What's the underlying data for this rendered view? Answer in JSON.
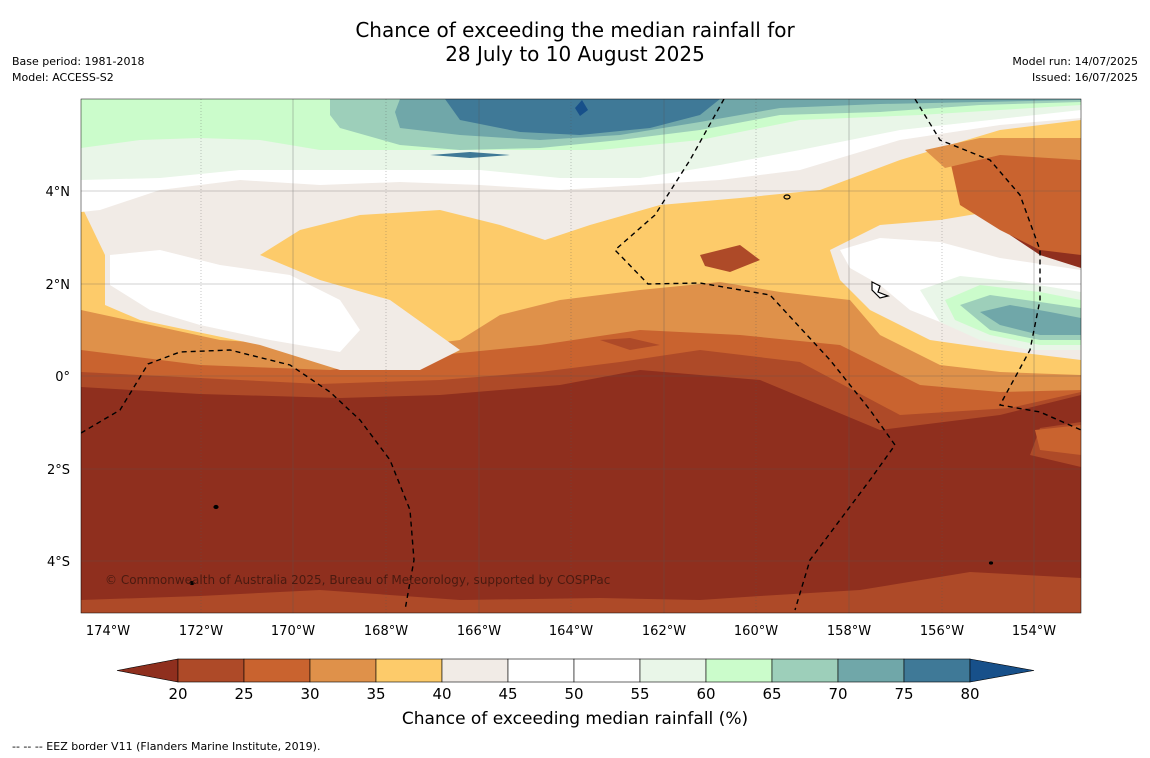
{
  "header": {
    "title_line1": "Chance of exceeding the median rainfall for",
    "title_line2": "28 July to 10 August 2025",
    "base_period": "Base period: 1981-2018",
    "model": "Model: ACCESS-S2",
    "model_run": "Model run: 14/07/2025",
    "issued": "Issued: 16/07/2025"
  },
  "map": {
    "lat_labels": [
      "4°N",
      "2°N",
      "0°",
      "2°S",
      "4°S"
    ],
    "lon_labels": [
      "174°W",
      "172°W",
      "170°W",
      "168°W",
      "166°W",
      "164°W",
      "162°W",
      "160°W",
      "158°W",
      "156°W",
      "154°W"
    ],
    "copyright": "© Commonwealth of Australia 2025, Bureau of Meteorology, supported by COSPPac"
  },
  "colorbar": {
    "ticks": [
      "20",
      "25",
      "30",
      "35",
      "40",
      "45",
      "50",
      "55",
      "60",
      "65",
      "70",
      "75",
      "80"
    ],
    "colors": [
      "#8f2f1e",
      "#ae4a28",
      "#c9632f",
      "#df914a",
      "#fdcb6a",
      "#f1ebe6",
      "#ffffff",
      "#ffffff",
      "#e9f6e8",
      "#cbfccb",
      "#9dcfba",
      "#70a7a9",
      "#3f7997",
      "#17508a"
    ],
    "title": "Chance of exceeding median rainfall (%)"
  },
  "footer": {
    "legend": "--  --  -- EEZ border V11 (Flanders Marine Institute, 2019)."
  }
}
